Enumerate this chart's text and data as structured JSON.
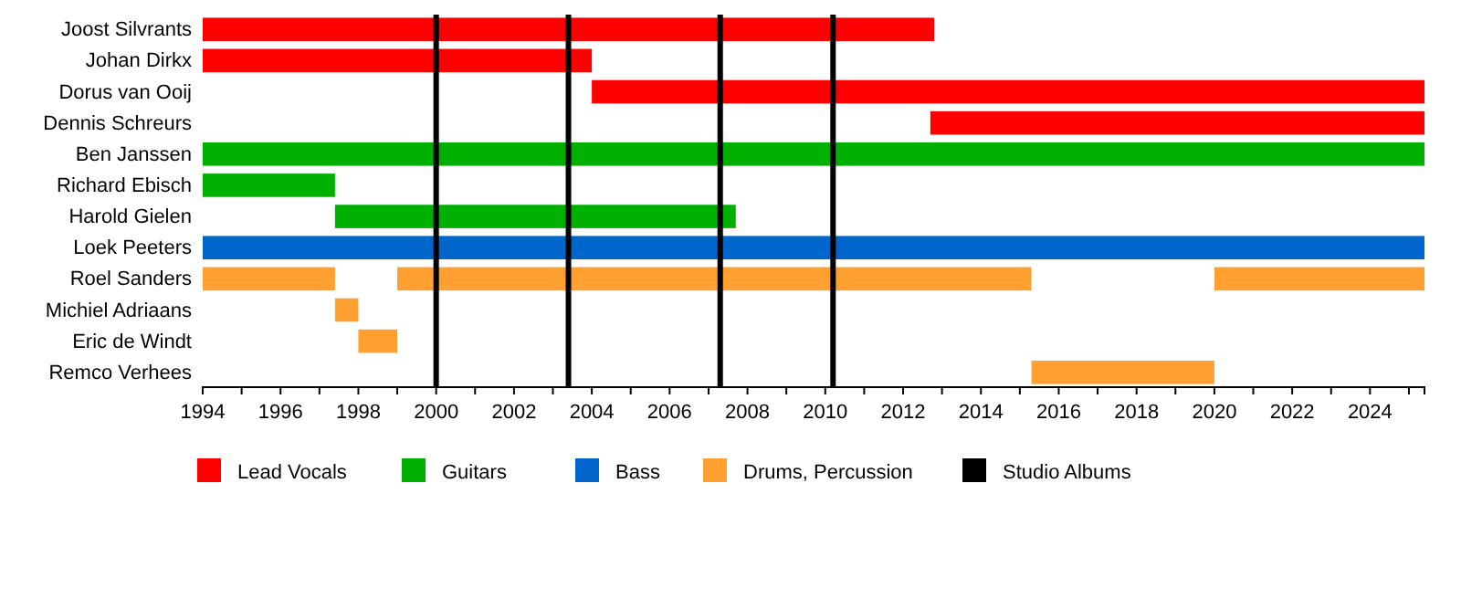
{
  "chart_data": {
    "type": "bar",
    "orientation": "horizontal",
    "categories": [
      "Joost Silvrants",
      "Johan Dirkx",
      "Dorus van Ooij",
      "Dennis Schreurs",
      "Ben Janssen",
      "Richard Ebisch",
      "Harold Gielen",
      "Loek Peeters",
      "Roel Sanders",
      "Michiel Adriaans",
      "Eric de Windt",
      "Remco Verhees"
    ],
    "series": [
      {
        "name": "Lead Vocals",
        "color": "#ff0000",
        "base": [
          1994,
          1994,
          2004.0,
          2012.7,
          null,
          null,
          null,
          null,
          null,
          null,
          null,
          null
        ],
        "values": [
          18.8,
          10.0,
          21.4,
          12.7,
          null,
          null,
          null,
          null,
          null,
          null,
          null,
          null
        ]
      },
      {
        "name": "Guitars",
        "color": "#00b000",
        "base": [
          null,
          null,
          null,
          null,
          1994,
          1994,
          1997.4,
          null,
          null,
          null,
          null,
          null
        ],
        "values": [
          null,
          null,
          null,
          null,
          31.4,
          3.4,
          10.3,
          null,
          null,
          null,
          null,
          null
        ]
      },
      {
        "name": "Bass",
        "color": "#0066cc",
        "base": [
          null,
          null,
          null,
          null,
          null,
          null,
          null,
          1994,
          null,
          null,
          null,
          null
        ],
        "values": [
          null,
          null,
          null,
          null,
          null,
          null,
          null,
          31.4,
          null,
          null,
          null,
          null
        ]
      },
      {
        "name": "Drums, Percussion",
        "color": "#ffa030",
        "base": [
          null,
          null,
          null,
          null,
          null,
          null,
          null,
          null,
          1994,
          1997.4,
          1998.0,
          2015.3
        ],
        "values": [
          null,
          null,
          null,
          null,
          null,
          null,
          null,
          null,
          3.4,
          0.6,
          1.0,
          4.7
        ]
      },
      {
        "color": "#ffa030",
        "base": [
          null,
          null,
          null,
          null,
          null,
          null,
          null,
          null,
          1999.0,
          null,
          null,
          null
        ],
        "values": [
          null,
          null,
          null,
          null,
          null,
          null,
          null,
          null,
          16.3,
          null,
          null,
          null
        ]
      },
      {
        "color": "#ffa030",
        "base": [
          null,
          null,
          null,
          null,
          null,
          null,
          null,
          null,
          2020.0,
          null,
          null,
          null
        ],
        "values": [
          null,
          null,
          null,
          null,
          null,
          null,
          null,
          null,
          5.4,
          null,
          null,
          null
        ]
      }
    ],
    "xlim": [
      1994,
      2025.4
    ],
    "xticks": [
      1994,
      {
        "value": 1995,
        "label": null
      },
      1996,
      {
        "value": 1997,
        "label": null
      },
      1998,
      {
        "value": 1999,
        "label": null
      },
      2000,
      {
        "value": 2001,
        "label": null
      },
      2002,
      {
        "value": 2003,
        "label": null
      },
      2004,
      {
        "value": 2005,
        "label": null
      },
      2006,
      {
        "value": 2007,
        "label": null
      },
      2008,
      {
        "value": 2009,
        "label": null
      },
      2010,
      {
        "value": 2011,
        "label": null
      },
      2012,
      {
        "value": 2013,
        "label": null
      },
      2014,
      {
        "value": 2015,
        "label": null
      },
      2016,
      {
        "value": 2017,
        "label": null
      },
      2018,
      {
        "value": 2019,
        "label": null
      },
      2020,
      {
        "value": 2021,
        "label": null
      },
      2022,
      {
        "value": 2023,
        "label": null
      },
      2024,
      {
        "value": 2025,
        "label": null
      }
    ],
    "ref_lines": [
      {
        "axis": "x",
        "value": 2000.0,
        "label": "Studio Albums",
        "color": "#000000"
      },
      {
        "axis": "x",
        "value": 2003.4,
        "color": "#000000"
      },
      {
        "axis": "x",
        "value": 2007.3,
        "color": "#000000"
      },
      {
        "axis": "x",
        "value": 2010.2,
        "color": "#000000"
      }
    ],
    "grid": false,
    "legend": "bottom"
  }
}
